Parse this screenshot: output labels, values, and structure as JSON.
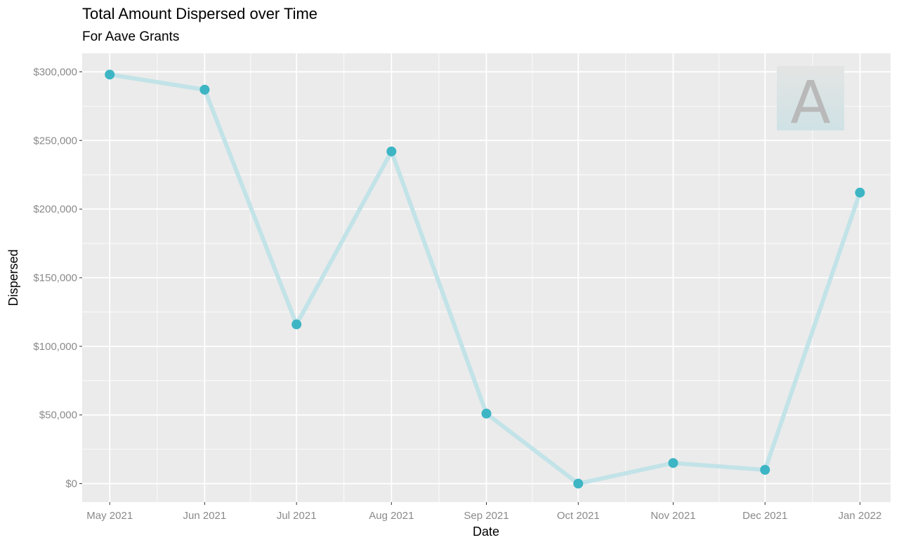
{
  "title": "Total Amount Dispersed over Time",
  "subtitle": "For Aave Grants",
  "logo": {
    "name": "aave-logo",
    "letter": "A"
  },
  "colors": {
    "panel": "#ebebeb",
    "grid": "#ffffff",
    "line": "#c2e3e8",
    "point": "#3db5c4",
    "logo_letter": "#b9b9b9"
  },
  "chart_data": {
    "type": "line",
    "xlabel": "Date",
    "ylabel": "Dispersed",
    "x": [
      "May 2021",
      "Jun 2021",
      "Jul 2021",
      "Aug 2021",
      "Sep 2021",
      "Oct 2021",
      "Nov 2021",
      "Dec 2021",
      "Jan 2022"
    ],
    "x_dates": [
      "2021-05-01",
      "2021-06-01",
      "2021-07-01",
      "2021-08-01",
      "2021-09-01",
      "2021-10-01",
      "2021-11-01",
      "2021-12-01",
      "2022-01-01"
    ],
    "series": [
      {
        "values": [
          298000,
          287000,
          116000,
          242000,
          51000,
          0,
          15000,
          10000,
          212000
        ]
      }
    ],
    "ylim": [
      -13500,
      313500
    ],
    "xlim": [
      "2021-04-22",
      "2022-01-11"
    ],
    "yticks": [
      0,
      50000,
      100000,
      150000,
      200000,
      250000,
      300000
    ],
    "ytick_labels": [
      "$0",
      "$50,000",
      "$100,000",
      "$150,000",
      "$200,000",
      "$250,000",
      "$300,000"
    ],
    "grid": true,
    "legend": "none"
  }
}
